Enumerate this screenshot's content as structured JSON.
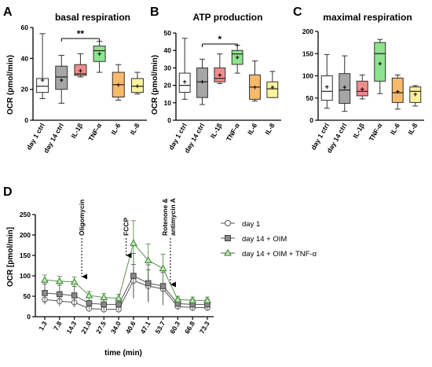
{
  "chart_data": [
    {
      "type": "box",
      "panel": "A",
      "title": "basal respiration",
      "ylabel": "OCR (pmol/min)",
      "ylim": [
        0,
        60
      ],
      "yticks": [
        0,
        20,
        40,
        60
      ],
      "categories": [
        "day 1 ctrl",
        "day 14 ctrl",
        "IL-1β",
        "TNF-α",
        "IL-6",
        "IL-8"
      ],
      "colors": [
        "#ffffff",
        "#a6a6a6",
        "#f08c8c",
        "#8fe28f",
        "#f7b96b",
        "#fbf29a"
      ],
      "boxes": [
        {
          "min": 14,
          "q1": 18,
          "median": 22,
          "q3": 27,
          "max": 56,
          "mean": 26
        },
        {
          "min": 11,
          "q1": 20,
          "median": 28,
          "q3": 35,
          "max": 42,
          "mean": 26
        },
        {
          "min": 28,
          "q1": 29,
          "median": 30,
          "q3": 36,
          "max": 43,
          "mean": 32
        },
        {
          "min": 31,
          "q1": 38,
          "median": 45,
          "q3": 48,
          "max": 51,
          "mean": 43
        },
        {
          "min": 13,
          "q1": 15,
          "median": 23,
          "q3": 31,
          "max": 36,
          "mean": 23
        },
        {
          "min": 17,
          "q1": 18,
          "median": 22,
          "q3": 27,
          "max": 31,
          "mean": 22
        }
      ],
      "significance": {
        "from": 1,
        "to": 3,
        "label": "**"
      }
    },
    {
      "type": "box",
      "panel": "B",
      "title": "ATP production",
      "ylabel": "OCR (pmol/min)",
      "ylim": [
        0,
        50
      ],
      "yticks": [
        0,
        10,
        20,
        30,
        40,
        50
      ],
      "categories": [
        "day 1 ctrl",
        "day 14 ctrl",
        "IL-1β",
        "TNF-α",
        "IL-6",
        "IL-8"
      ],
      "colors": [
        "#ffffff",
        "#a6a6a6",
        "#f08c8c",
        "#8fe28f",
        "#f7b96b",
        "#fbf29a"
      ],
      "boxes": [
        {
          "min": 12,
          "q1": 16,
          "median": 20,
          "q3": 27,
          "max": 47,
          "mean": 22
        },
        {
          "min": 9,
          "q1": 13,
          "median": 22,
          "q3": 30,
          "max": 35,
          "mean": 22
        },
        {
          "min": 21,
          "q1": 22,
          "median": 24,
          "q3": 30,
          "max": 38,
          "mean": 26
        },
        {
          "min": 27,
          "q1": 32,
          "median": 38,
          "q3": 40,
          "max": 43,
          "mean": 36
        },
        {
          "min": 11,
          "q1": 12,
          "median": 19,
          "q3": 26,
          "max": 34,
          "mean": 19
        },
        {
          "min": 13,
          "q1": 13,
          "median": 18,
          "q3": 22,
          "max": 28,
          "mean": 19
        }
      ],
      "significance": {
        "from": 1,
        "to": 3,
        "label": "*"
      }
    },
    {
      "type": "box",
      "panel": "C",
      "title": "maximal respiration",
      "ylabel": "",
      "ylim": [
        0,
        200
      ],
      "yticks": [
        0,
        50,
        100,
        150,
        200
      ],
      "categories": [
        "day 1 ctrl",
        "day 14 ctrl",
        "IL-1β",
        "TNF-α",
        "IL-6",
        "IL-8"
      ],
      "colors": [
        "#ffffff",
        "#a6a6a6",
        "#f08c8c",
        "#8fe28f",
        "#f7b96b",
        "#fbf29a"
      ],
      "boxes": [
        {
          "min": 27,
          "q1": 45,
          "median": 65,
          "q3": 100,
          "max": 148,
          "mean": 75
        },
        {
          "min": 20,
          "q1": 38,
          "median": 68,
          "q3": 105,
          "max": 145,
          "mean": 74
        },
        {
          "min": 48,
          "q1": 55,
          "median": 65,
          "q3": 88,
          "max": 102,
          "mean": 70
        },
        {
          "min": 60,
          "q1": 88,
          "median": 150,
          "q3": 175,
          "max": 182,
          "mean": 127
        },
        {
          "min": 25,
          "q1": 40,
          "median": 62,
          "q3": 95,
          "max": 102,
          "mean": 65
        },
        {
          "min": 32,
          "q1": 40,
          "median": 65,
          "q3": 75,
          "max": 78,
          "mean": 58
        }
      ]
    },
    {
      "type": "line",
      "panel": "D",
      "xlabel": "time (min)",
      "ylabel": "OCR [pmol/min]",
      "ylim": [
        0,
        250
      ],
      "yticks": [
        0,
        50,
        100,
        150,
        200,
        250
      ],
      "x": [
        "1.3",
        "7.8",
        "14.3",
        "21.0",
        "27.5",
        "34.0",
        "40.6",
        "47.1",
        "53.7",
        "60.3",
        "66.8",
        "73.3"
      ],
      "series": [
        {
          "name": "day 1",
          "marker": "circle",
          "values": [
            42,
            38,
            35,
            20,
            18,
            18,
            88,
            75,
            68,
            25,
            22,
            22
          ],
          "errors": [
            12,
            12,
            12,
            8,
            8,
            8,
            40,
            40,
            40,
            8,
            8,
            8
          ]
        },
        {
          "name": "day 14 + OIM",
          "marker": "square",
          "values": [
            58,
            55,
            52,
            33,
            30,
            30,
            100,
            82,
            75,
            32,
            30,
            30
          ],
          "errors": [
            22,
            22,
            22,
            15,
            15,
            15,
            55,
            45,
            40,
            12,
            12,
            12
          ]
        },
        {
          "name": "day 14 + OIM + TNF-α",
          "marker": "triangle",
          "values": [
            90,
            87,
            85,
            52,
            47,
            45,
            180,
            138,
            118,
            42,
            40,
            40
          ],
          "errors": [
            12,
            12,
            12,
            10,
            10,
            10,
            55,
            40,
            35,
            8,
            8,
            8
          ]
        }
      ],
      "annotations": [
        {
          "label": "Oligomycin",
          "x_after": "14.3"
        },
        {
          "label": "FCCP",
          "x_after": "34.0"
        },
        {
          "label": "Rotenone & antimycin A",
          "x_after": "53.7"
        }
      ]
    }
  ]
}
